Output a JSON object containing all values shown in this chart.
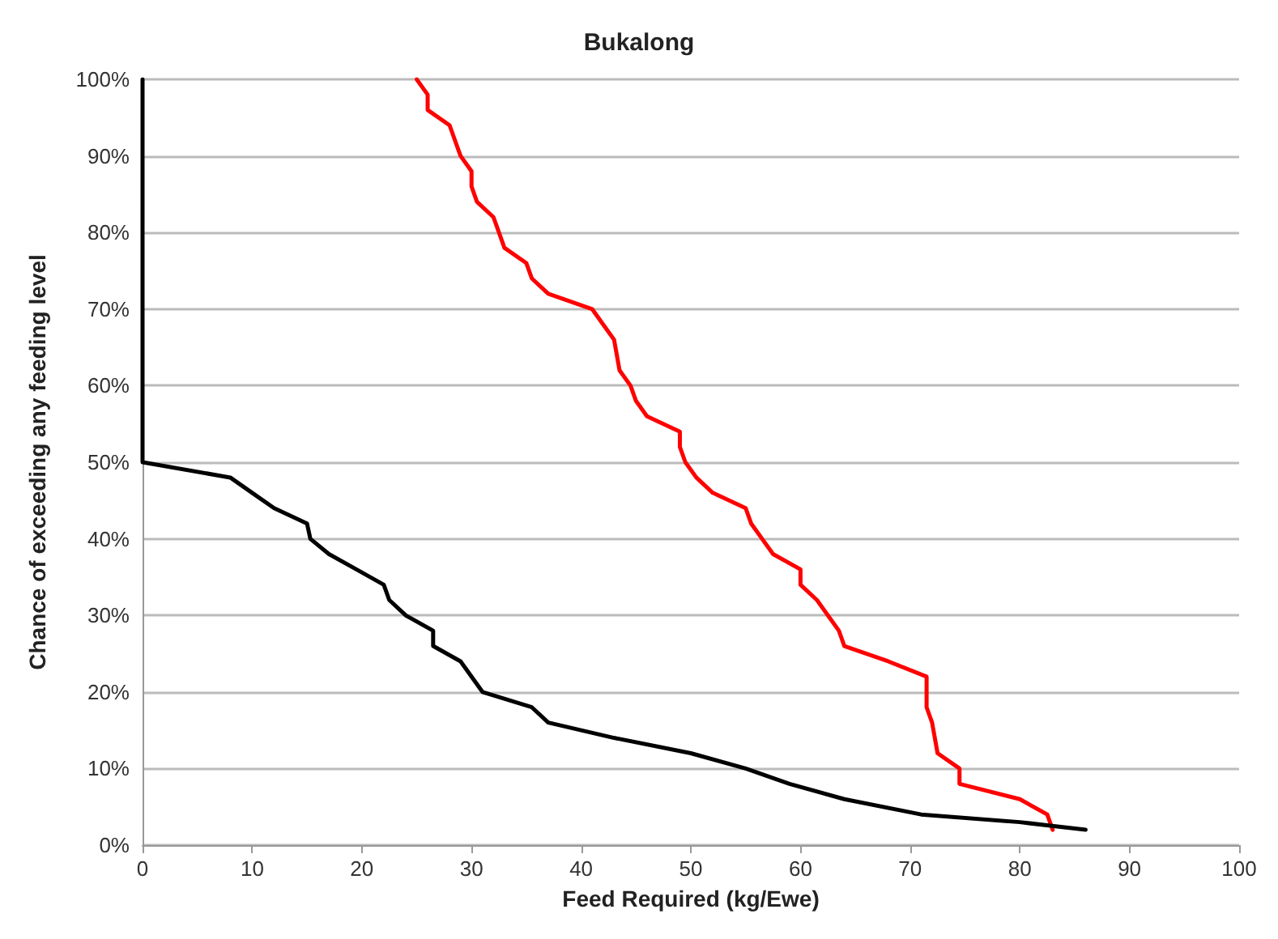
{
  "chart_data": {
    "type": "line",
    "title": "Bukalong",
    "xlabel": "Feed Required (kg/Ewe)",
    "ylabel": "Chance of exceeding any feeding level",
    "xlim": [
      0,
      100
    ],
    "xticks": [
      0,
      10,
      20,
      30,
      40,
      50,
      60,
      70,
      80,
      90,
      100
    ],
    "ylim": [
      0,
      100
    ],
    "yticks": [
      {
        "value": 0,
        "label": "0%"
      },
      {
        "value": 10,
        "label": "10%"
      },
      {
        "value": 20,
        "label": "20%"
      },
      {
        "value": 30,
        "label": "30%"
      },
      {
        "value": 40,
        "label": "40%"
      },
      {
        "value": 50,
        "label": "50%"
      },
      {
        "value": 60,
        "label": "60%"
      },
      {
        "value": 70,
        "label": "70%"
      },
      {
        "value": 80,
        "label": "80%"
      },
      {
        "value": 90,
        "label": "90%"
      },
      {
        "value": 100,
        "label": "100%"
      }
    ],
    "grid": "y",
    "marker": "none",
    "line_style": "solid",
    "series": [
      {
        "color": "#ff0000",
        "x": [
          25,
          26,
          26,
          28,
          29,
          30,
          30,
          30.5,
          32,
          32.5,
          33,
          35,
          35.5,
          37,
          41,
          42,
          43,
          43.5,
          44.5,
          45,
          46,
          49,
          49,
          49.5,
          50.5,
          52,
          55,
          55.5,
          56.5,
          57.5,
          60,
          60,
          61.5,
          62.5,
          63.5,
          64,
          68,
          71.5,
          71.5,
          72,
          72.5,
          74.5,
          74.5,
          80,
          82.5,
          83
        ],
        "values": [
          100,
          98,
          96,
          94,
          90,
          88,
          86,
          84,
          82,
          80,
          78,
          76,
          74,
          72,
          70,
          68,
          66,
          62,
          60,
          58,
          56,
          54,
          52,
          50,
          48,
          46,
          44,
          42,
          40,
          38,
          36,
          34,
          32,
          30,
          28,
          26,
          24,
          22,
          18,
          16,
          12,
          10,
          8,
          6,
          4,
          2
        ]
      },
      {
        "color": "#000000",
        "x": [
          0,
          0,
          8,
          10,
          12,
          15,
          15.3,
          17,
          19.5,
          22,
          22.5,
          24,
          26.5,
          26.5,
          29,
          31,
          35.5,
          37,
          43,
          50,
          55,
          59,
          64,
          71,
          80,
          86
        ],
        "values": [
          100,
          50,
          48,
          46,
          44,
          42,
          40,
          38,
          36,
          34,
          32,
          30,
          28,
          26,
          24,
          20,
          18,
          16,
          14,
          12,
          10,
          8,
          6,
          4,
          3,
          2
        ]
      }
    ]
  }
}
